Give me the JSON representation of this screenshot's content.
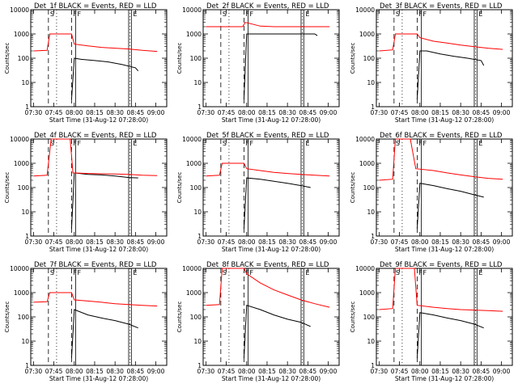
{
  "colors": {
    "events": "#000000",
    "lld": "#ff0000",
    "background": "#ffffff"
  },
  "chart_data": {
    "type": "line",
    "panel_rows": 3,
    "panel_cols": 3,
    "y_scale": "log",
    "ylim": [
      1,
      10000
    ],
    "y_ticks": [
      "1",
      "10",
      "100",
      "1000",
      "10000"
    ],
    "x_ticks": [
      "07:30",
      "07:45",
      "08:00",
      "08:15",
      "08:30",
      "08:45",
      "09:00"
    ],
    "xlabel": "Start Time (31-Aug-12 07:28:00)",
    "ylabel": "Counts/sec",
    "series_names": [
      "Events",
      "LLD"
    ],
    "panels": [
      {
        "title": "Det_1f BLACK = Events, RED = LLD",
        "markers": [
          "S",
          "F",
          "F",
          "E"
        ],
        "dashed_lines": [
          "07:41",
          "07:58"
        ],
        "dotted_lines": [
          "07:47",
          "08:41"
        ],
        "solid_lines": [
          "08:01",
          "08:40",
          "08:42"
        ],
        "series": [
          {
            "name": "Events",
            "x": [
              "07:58",
              "08:00",
              "08:05",
              "08:15",
              "08:25",
              "08:35",
              "08:45",
              "08:47"
            ],
            "values": [
              2,
              100,
              90,
              80,
              70,
              55,
              40,
              30
            ]
          },
          {
            "name": "LLD",
            "x": [
              "07:30",
              "07:40",
              "07:42",
              "07:58",
              "08:00",
              "08:10",
              "08:20",
              "08:30",
              "08:40",
              "08:50",
              "09:01"
            ],
            "values": [
              200,
              210,
              1000,
              1000,
              380,
              320,
              280,
              260,
              240,
              210,
              190
            ]
          }
        ]
      },
      {
        "title": "Det_2f BLACK = Events, RED = LLD",
        "markers": [
          "S",
          "F",
          "F",
          "E"
        ],
        "dashed_lines": [
          "07:41",
          "07:58"
        ],
        "dotted_lines": [
          "07:47",
          "08:41"
        ],
        "solid_lines": [
          "08:01",
          "08:40",
          "08:42"
        ],
        "series": [
          {
            "name": "Events",
            "x": [
              "07:58",
              "08:00",
              "08:10",
              "08:20",
              "08:30",
              "08:40",
              "08:50",
              "08:52"
            ],
            "values": [
              2,
              1000,
              1000,
              1000,
              1000,
              1000,
              1000,
              850
            ]
          },
          {
            "name": "LLD",
            "x": [
              "07:30",
              "07:57",
              "07:59",
              "08:10",
              "08:20",
              "08:30",
              "08:40",
              "09:01"
            ],
            "values": [
              2000,
              2000,
              3000,
              2100,
              2000,
              2000,
              2000,
              2000
            ]
          }
        ]
      },
      {
        "title": "Det_3f BLACK = Events, RED = LLD",
        "markers": [
          "S",
          "F",
          "F",
          "E"
        ],
        "dashed_lines": [
          "07:41",
          "07:58"
        ],
        "dotted_lines": [
          "07:47",
          "08:41"
        ],
        "solid_lines": [
          "08:01",
          "08:40",
          "08:42"
        ],
        "series": [
          {
            "name": "Events",
            "x": [
              "07:58",
              "08:00",
              "08:05",
              "08:15",
              "08:25",
              "08:35",
              "08:45",
              "08:47"
            ],
            "values": [
              2,
              200,
              200,
              150,
              120,
              100,
              80,
              50
            ]
          },
          {
            "name": "LLD",
            "x": [
              "07:30",
              "07:40",
              "07:42",
              "07:58",
              "08:00",
              "08:10",
              "08:20",
              "08:30",
              "08:40",
              "08:50",
              "09:01"
            ],
            "values": [
              200,
              220,
              1000,
              1000,
              700,
              500,
              420,
              350,
              300,
              260,
              230
            ]
          }
        ]
      },
      {
        "title": "Det_4f BLACK = Events, RED = LLD",
        "markers": [
          "S",
          "F",
          "F",
          "E"
        ],
        "dashed_lines": [
          "07:41",
          "07:58"
        ],
        "dotted_lines": [
          "07:47",
          "08:41"
        ],
        "solid_lines": [
          "08:01",
          "08:40",
          "08:42"
        ],
        "series": [
          {
            "name": "Events",
            "x": [
              "07:58",
              "08:00",
              "08:10",
              "08:20",
              "08:30",
              "08:40",
              "08:47"
            ],
            "values": [
              2,
              400,
              350,
              330,
              300,
              260,
              250
            ]
          },
          {
            "name": "LLD",
            "x": [
              "07:30",
              "07:40",
              "07:43",
              "07:57",
              "07:59",
              "08:10",
              "08:20",
              "08:30",
              "08:40",
              "08:50",
              "09:01"
            ],
            "values": [
              300,
              320,
              10000,
              10000,
              400,
              380,
              370,
              360,
              350,
              320,
              310
            ]
          }
        ]
      },
      {
        "title": "Det_5f BLACK = Events, RED = LLD",
        "markers": [
          "S",
          "F",
          "F",
          "E"
        ],
        "dashed_lines": [
          "07:41",
          "07:58"
        ],
        "dotted_lines": [
          "07:47",
          "08:41"
        ],
        "solid_lines": [
          "08:01",
          "08:40",
          "08:42"
        ],
        "series": [
          {
            "name": "Events",
            "x": [
              "07:58",
              "08:00",
              "08:10",
              "08:20",
              "08:30",
              "08:40",
              "08:47"
            ],
            "values": [
              2,
              250,
              220,
              180,
              150,
              120,
              100
            ]
          },
          {
            "name": "LLD",
            "x": [
              "07:30",
              "07:40",
              "07:42",
              "07:58",
              "08:00",
              "08:10",
              "08:20",
              "08:30",
              "08:40",
              "08:50",
              "09:01"
            ],
            "values": [
              300,
              320,
              1000,
              1000,
              600,
              500,
              420,
              380,
              350,
              320,
              300
            ]
          }
        ]
      },
      {
        "title": "Det_6f BLACK = Events, RED = LLD",
        "markers": [
          "S",
          "F",
          "F",
          "E"
        ],
        "dashed_lines": [
          "07:41",
          "07:58"
        ],
        "dotted_lines": [
          "07:47",
          "08:41"
        ],
        "solid_lines": [
          "08:01",
          "08:40",
          "08:42"
        ],
        "series": [
          {
            "name": "Events",
            "x": [
              "07:58",
              "08:00",
              "08:10",
              "08:20",
              "08:30",
              "08:40",
              "08:47"
            ],
            "values": [
              2,
              150,
              120,
              90,
              70,
              50,
              40
            ]
          },
          {
            "name": "LLD",
            "x": [
              "07:30",
              "07:40",
              "07:42",
              "07:53",
              "07:57",
              "08:10",
              "08:20",
              "08:30",
              "08:40",
              "08:50",
              "09:01"
            ],
            "values": [
              200,
              220,
              10000,
              10000,
              600,
              500,
              400,
              330,
              280,
              240,
              220
            ]
          }
        ]
      },
      {
        "title": "Det_7f BLACK = Events, RED = LLD",
        "markers": [
          "S",
          "F",
          "F",
          "E"
        ],
        "dashed_lines": [
          "07:41",
          "07:58"
        ],
        "dotted_lines": [
          "07:47",
          "08:41"
        ],
        "solid_lines": [
          "08:01",
          "08:40",
          "08:42"
        ],
        "series": [
          {
            "name": "Events",
            "x": [
              "07:58",
              "08:00",
              "08:10",
              "08:20",
              "08:30",
              "08:40",
              "08:47"
            ],
            "values": [
              2,
              200,
              120,
              90,
              70,
              50,
              35
            ]
          },
          {
            "name": "LLD",
            "x": [
              "07:30",
              "07:40",
              "07:42",
              "07:58",
              "08:00",
              "08:10",
              "08:20",
              "08:30",
              "08:40",
              "08:50",
              "09:01"
            ],
            "values": [
              400,
              420,
              1000,
              1000,
              500,
              450,
              400,
              350,
              320,
              300,
              280
            ]
          }
        ]
      },
      {
        "title": "Det_8f BLACK = Events, RED = LLD",
        "markers": [
          "S",
          "F",
          "F",
          "E"
        ],
        "dashed_lines": [
          "07:41",
          "07:58"
        ],
        "dotted_lines": [
          "07:47",
          "08:41"
        ],
        "solid_lines": [
          "08:01",
          "08:40",
          "08:42"
        ],
        "series": [
          {
            "name": "Events",
            "x": [
              "07:58",
              "08:00",
              "08:10",
              "08:20",
              "08:30",
              "08:40",
              "08:47"
            ],
            "values": [
              2,
              300,
              200,
              120,
              80,
              60,
              40
            ]
          },
          {
            "name": "LLD",
            "x": [
              "07:30",
              "07:40",
              "07:42",
              "07:58",
              "08:00",
              "08:10",
              "08:20",
              "08:30",
              "08:40",
              "08:50",
              "09:01"
            ],
            "values": [
              300,
              320,
              10000,
              10000,
              6000,
              2500,
              1300,
              800,
              500,
              350,
              250
            ]
          }
        ]
      },
      {
        "title": "Det_9f BLACK = Events, RED = LLD",
        "markers": [
          "S",
          "F",
          "F",
          "E"
        ],
        "dashed_lines": [
          "07:41",
          "07:58"
        ],
        "dotted_lines": [
          "07:47",
          "08:41"
        ],
        "solid_lines": [
          "08:01",
          "08:40",
          "08:42"
        ],
        "series": [
          {
            "name": "Events",
            "x": [
              "07:58",
              "08:00",
              "08:10",
              "08:20",
              "08:30",
              "08:40",
              "08:47"
            ],
            "values": [
              2,
              150,
              120,
              90,
              70,
              50,
              35
            ]
          },
          {
            "name": "LLD",
            "x": [
              "07:30",
              "07:40",
              "07:42",
              "07:56",
              "07:58",
              "08:10",
              "08:20",
              "08:30",
              "08:40",
              "08:50",
              "09:01"
            ],
            "values": [
              200,
              220,
              10000,
              10000,
              300,
              250,
              220,
              200,
              190,
              180,
              170
            ]
          }
        ]
      }
    ]
  }
}
